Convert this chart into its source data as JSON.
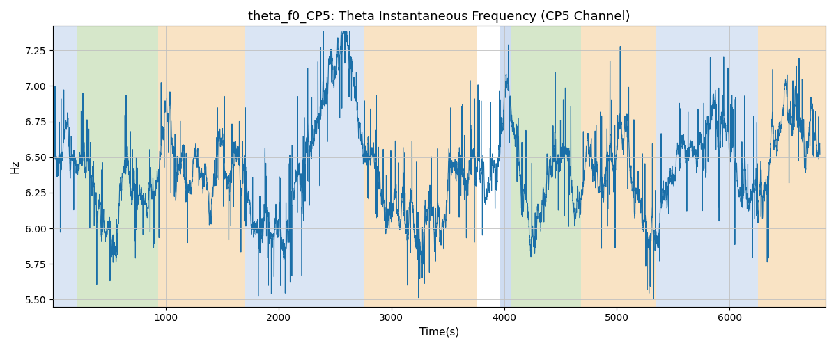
{
  "title": "theta_f0_CP5: Theta Instantaneous Frequency (CP5 Channel)",
  "xlabel": "Time(s)",
  "ylabel": "Hz",
  "ylim": [
    5.45,
    7.42
  ],
  "xlim": [
    0,
    6850
  ],
  "line_color": "#1a6fa8",
  "line_width": 0.85,
  "background_color": "#ffffff",
  "grid_color": "#c0c0c0",
  "title_fontsize": 13,
  "label_fontsize": 11,
  "bands": [
    {
      "start": 0,
      "end": 210,
      "color": "#aec6e8",
      "alpha": 0.45
    },
    {
      "start": 210,
      "end": 930,
      "color": "#b5d5a0",
      "alpha": 0.55
    },
    {
      "start": 930,
      "end": 1700,
      "color": "#f5c98a",
      "alpha": 0.5
    },
    {
      "start": 1700,
      "end": 2760,
      "color": "#aec6e8",
      "alpha": 0.45
    },
    {
      "start": 2760,
      "end": 3760,
      "color": "#f5c98a",
      "alpha": 0.5
    },
    {
      "start": 3960,
      "end": 4060,
      "color": "#aec6e8",
      "alpha": 0.6
    },
    {
      "start": 4060,
      "end": 4680,
      "color": "#b5d5a0",
      "alpha": 0.55
    },
    {
      "start": 4680,
      "end": 5350,
      "color": "#f5c98a",
      "alpha": 0.5
    },
    {
      "start": 5350,
      "end": 6250,
      "color": "#aec6e8",
      "alpha": 0.45
    },
    {
      "start": 6250,
      "end": 6850,
      "color": "#f5c98a",
      "alpha": 0.5
    }
  ],
  "n_points": 6800,
  "t_start": 0,
  "t_end": 6800
}
